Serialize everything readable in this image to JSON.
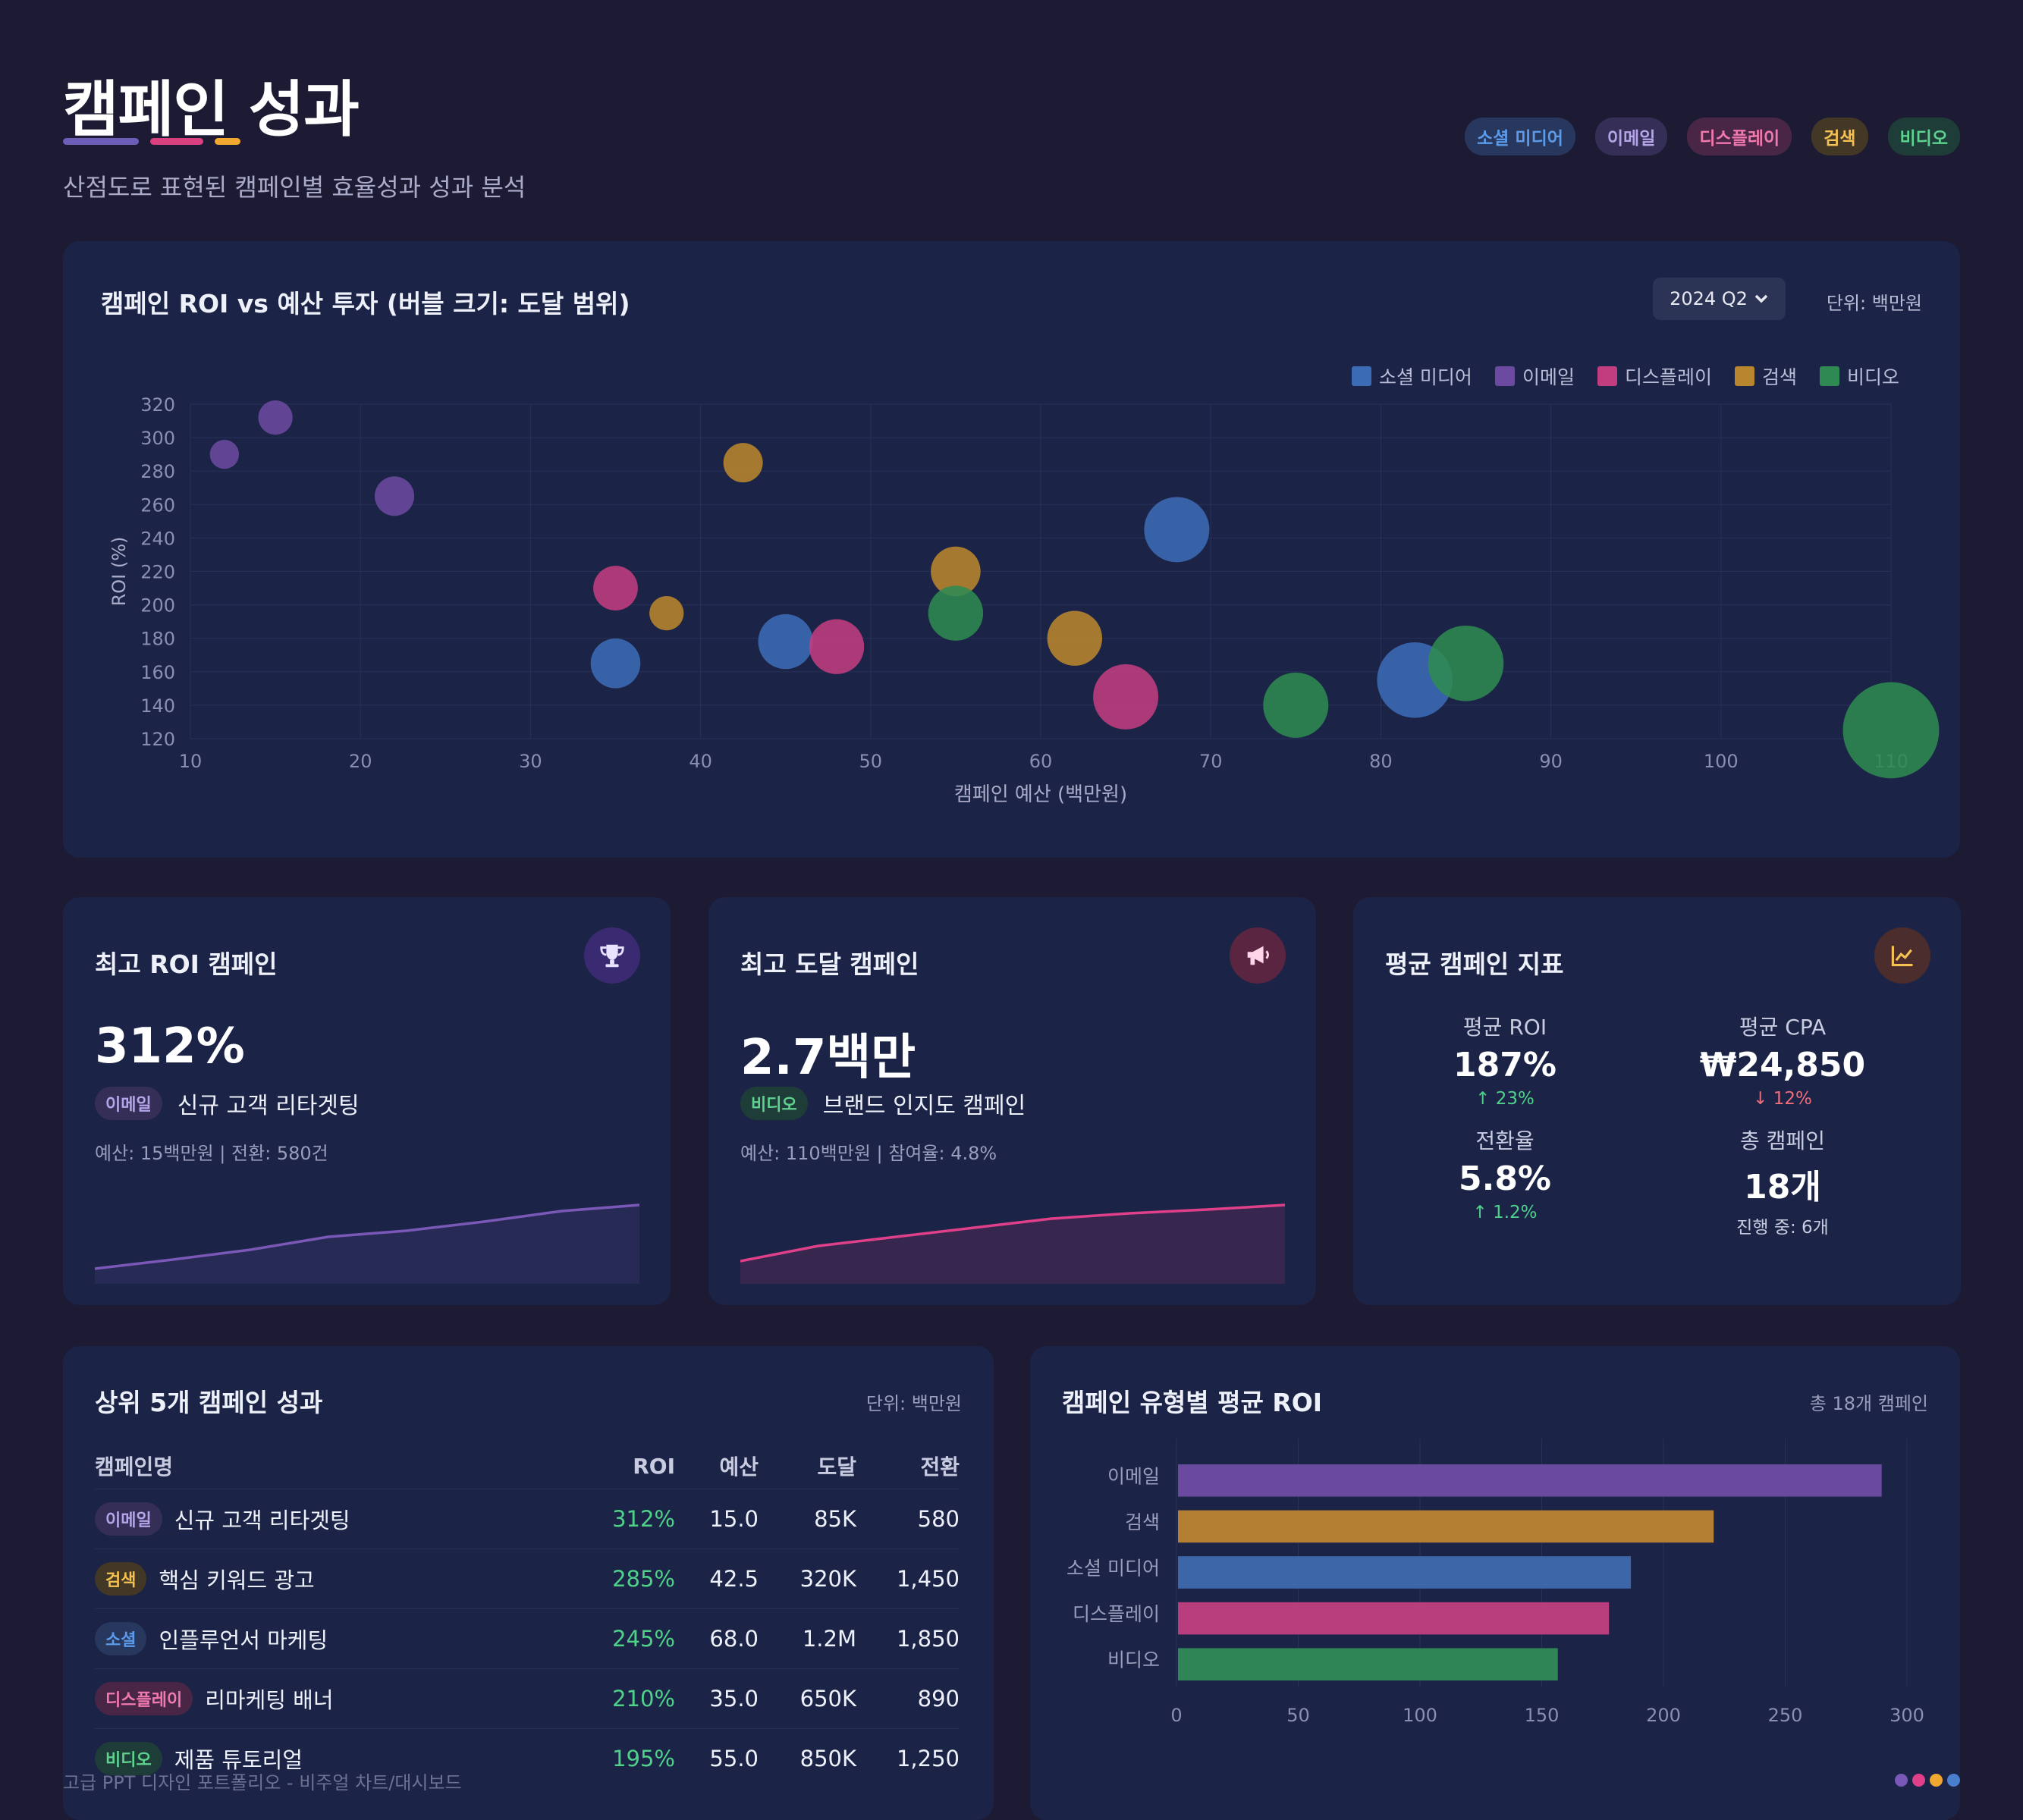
{
  "header": {
    "title": "캠페인 성과",
    "subtitle": "산점도로 표현된 캠페인별 효율성과 성과 분석",
    "bar_colors": [
      "#6b5db8",
      "#d8407f",
      "#f0a830"
    ],
    "chips": [
      {
        "label": "소셜 미디어",
        "color": "#5b9bea",
        "bg": "#27375e"
      },
      {
        "label": "이메일",
        "color": "#b5a4e8",
        "bg": "#352f58"
      },
      {
        "label": "디스플레이",
        "color": "#f07aae",
        "bg": "#4a2646"
      },
      {
        "label": "검색",
        "color": "#f4c152",
        "bg": "#433726"
      },
      {
        "label": "비디오",
        "color": "#5ed28f",
        "bg": "#1f3d38"
      }
    ]
  },
  "scatter_card": {
    "title": "캠페인 ROI vs 예산 투자 (버블 크기: 도달 범위)",
    "period": "2024 Q2",
    "unit": "단위: 백만원"
  },
  "chart_data": [
    {
      "type": "scatter",
      "title": "캠페인 ROI vs 예산 투자 (버블 크기: 도달 범위)",
      "xlabel": "캠페인 예산 (백만원)",
      "ylabel": "ROI (%)",
      "xlim": [
        10,
        110
      ],
      "ylim": [
        120,
        320
      ],
      "xticks": [
        10,
        20,
        30,
        40,
        50,
        60,
        70,
        80,
        90,
        100,
        110
      ],
      "yticks": [
        120,
        140,
        160,
        180,
        200,
        220,
        240,
        260,
        280,
        300,
        320
      ],
      "grid": true,
      "legend_position": "top-right",
      "series": [
        {
          "name": "소셜 미디어",
          "color": "#3c6bb5",
          "points": [
            [
              35,
              165,
              7
            ],
            [
              45,
              178,
              8
            ],
            [
              68,
              245,
              10
            ],
            [
              82,
              155,
              12
            ]
          ]
        },
        {
          "name": "이메일",
          "color": "#6b4a9f",
          "points": [
            [
              12,
              290,
              3
            ],
            [
              15,
              312,
              4
            ],
            [
              22,
              265,
              5
            ]
          ]
        },
        {
          "name": "디스플레이",
          "color": "#c23d7f",
          "points": [
            [
              35,
              210,
              6
            ],
            [
              48,
              175,
              8
            ],
            [
              65,
              145,
              10
            ]
          ]
        },
        {
          "name": "검색",
          "color": "#b8862e",
          "points": [
            [
              38,
              195,
              4
            ],
            [
              42.5,
              285,
              5
            ],
            [
              55,
              220,
              7
            ],
            [
              62,
              180,
              8
            ]
          ]
        },
        {
          "name": "비디오",
          "color": "#2e8a52",
          "points": [
            [
              55,
              195,
              8
            ],
            [
              75,
              140,
              10
            ],
            [
              85,
              165,
              12
            ],
            [
              110,
              125,
              16
            ]
          ]
        }
      ]
    },
    {
      "type": "bar",
      "orientation": "horizontal",
      "title": "캠페인 유형별 평균 ROI",
      "categories": [
        "이메일",
        "검색",
        "소셜 미디어",
        "디스플레이",
        "비디오"
      ],
      "values": [
        289,
        220,
        186,
        177,
        156
      ],
      "colors": [
        "#6a4a9e",
        "#b27f33",
        "#3d66a8",
        "#b83d7d",
        "#2f8556"
      ],
      "xlim": [
        0,
        300
      ],
      "xticks": [
        0,
        50,
        100,
        150,
        200,
        250,
        300
      ],
      "grid": true
    }
  ],
  "stat_cards": {
    "top_roi": {
      "title": "최고 ROI 캠페인",
      "value": "312%",
      "tag": "이메일",
      "name": "신규 고객 리타겟팅",
      "detail": "예산: 15백만원 | 전환: 580건",
      "icon": "trophy-icon",
      "spark_color": "#7a58b8",
      "spark": [
        0.1,
        0.22,
        0.35,
        0.52,
        0.6,
        0.72,
        0.86,
        0.94
      ]
    },
    "top_reach": {
      "title": "최고 도달 캠페인",
      "value": "2.7백만",
      "tag": "비디오",
      "name": "브랜드 인지도 캠페인",
      "detail": "예산: 110백만원 | 참여율: 4.8%",
      "icon": "megaphone-icon",
      "spark_color": "#e0408a",
      "spark": [
        0.2,
        0.4,
        0.52,
        0.64,
        0.76,
        0.83,
        0.88,
        0.94
      ]
    },
    "averages": {
      "title": "평균 캠페인 지표",
      "icon": "chart-line-icon",
      "metrics": [
        {
          "label": "평균 ROI",
          "value": "187%",
          "sub": "23%",
          "trend": "up"
        },
        {
          "label": "평균 CPA",
          "value": "₩24,850",
          "sub": "12%",
          "trend": "down"
        },
        {
          "label": "전환율",
          "value": "5.8%",
          "sub": "1.2%",
          "trend": "up"
        },
        {
          "label": "총 캠페인",
          "value": "18개",
          "sub": "진행 중: 6개",
          "trend": "none"
        }
      ]
    }
  },
  "table": {
    "title": "상위 5개 캠페인 성과",
    "unit": "단위: 백만원",
    "headers": {
      "name": "캠페인명",
      "roi": "ROI",
      "budget": "예산",
      "reach": "도달",
      "conv": "전환"
    },
    "rows": [
      {
        "tag": "이메일",
        "tag_color": "#b5a4e8",
        "tag_bg": "#352f58",
        "name": "신규 고객 리타겟팅",
        "roi": "312%",
        "budget": "15.0",
        "reach": "85K",
        "conv": "580"
      },
      {
        "tag": "검색",
        "tag_color": "#f4c152",
        "tag_bg": "#433726",
        "name": "핵심 키워드 광고",
        "roi": "285%",
        "budget": "42.5",
        "reach": "320K",
        "conv": "1,450"
      },
      {
        "tag": "소셜",
        "tag_color": "#5b9bea",
        "tag_bg": "#27375e",
        "name": "인플루언서 마케팅",
        "roi": "245%",
        "budget": "68.0",
        "reach": "1.2M",
        "conv": "1,850"
      },
      {
        "tag": "디스플레이",
        "tag_color": "#f07aae",
        "tag_bg": "#4a2646",
        "name": "리마케팅 배너",
        "roi": "210%",
        "budget": "35.0",
        "reach": "650K",
        "conv": "890"
      },
      {
        "tag": "비디오",
        "tag_color": "#5ed28f",
        "tag_bg": "#1f3d38",
        "name": "제품 튜토리얼",
        "roi": "195%",
        "budget": "55.0",
        "reach": "850K",
        "conv": "1,250"
      }
    ]
  },
  "bar_card": {
    "title": "캠페인 유형별 평균 ROI",
    "total": "총 18개 캠페인"
  },
  "footer": {
    "text": "고급 PPT 디자인 포트폴리오 - 비주얼 차트/대시보드",
    "dot_colors": [
      "#7a58b8",
      "#e0408a",
      "#f0a830",
      "#4a7fd0"
    ]
  }
}
